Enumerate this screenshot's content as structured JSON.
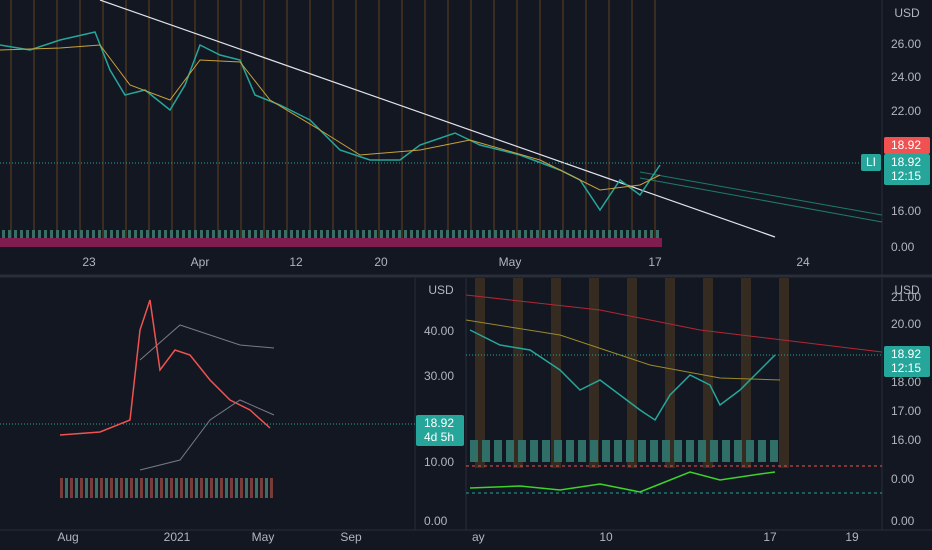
{
  "top": {
    "currency": "USD",
    "price_ticks": [
      "26.00",
      "24.00",
      "22.00",
      "16.00",
      "0.00"
    ],
    "high_tag": "18.92",
    "symbol": "LI",
    "last_price": "18.92",
    "countdown": "12:15",
    "dates": [
      "23",
      "Apr",
      "12",
      "20",
      "May",
      "17",
      "24"
    ]
  },
  "bottom_left": {
    "dates": [
      "Aug",
      "2021",
      "May",
      "Sep"
    ],
    "currency": "USD",
    "price_ticks": [
      "40.00",
      "30.00",
      "10.00",
      "0.00"
    ],
    "last_price": "18.92",
    "countdown": "4d 5h"
  },
  "bottom_right": {
    "dates": [
      "ay",
      "10",
      "17",
      "19"
    ],
    "currency": "USD",
    "price_ticks": [
      "21.00",
      "20.00",
      "18.00",
      "17.00",
      "16.00",
      "0.00",
      "0.00"
    ],
    "last_price": "18.92",
    "countdown": "12:15"
  }
}
